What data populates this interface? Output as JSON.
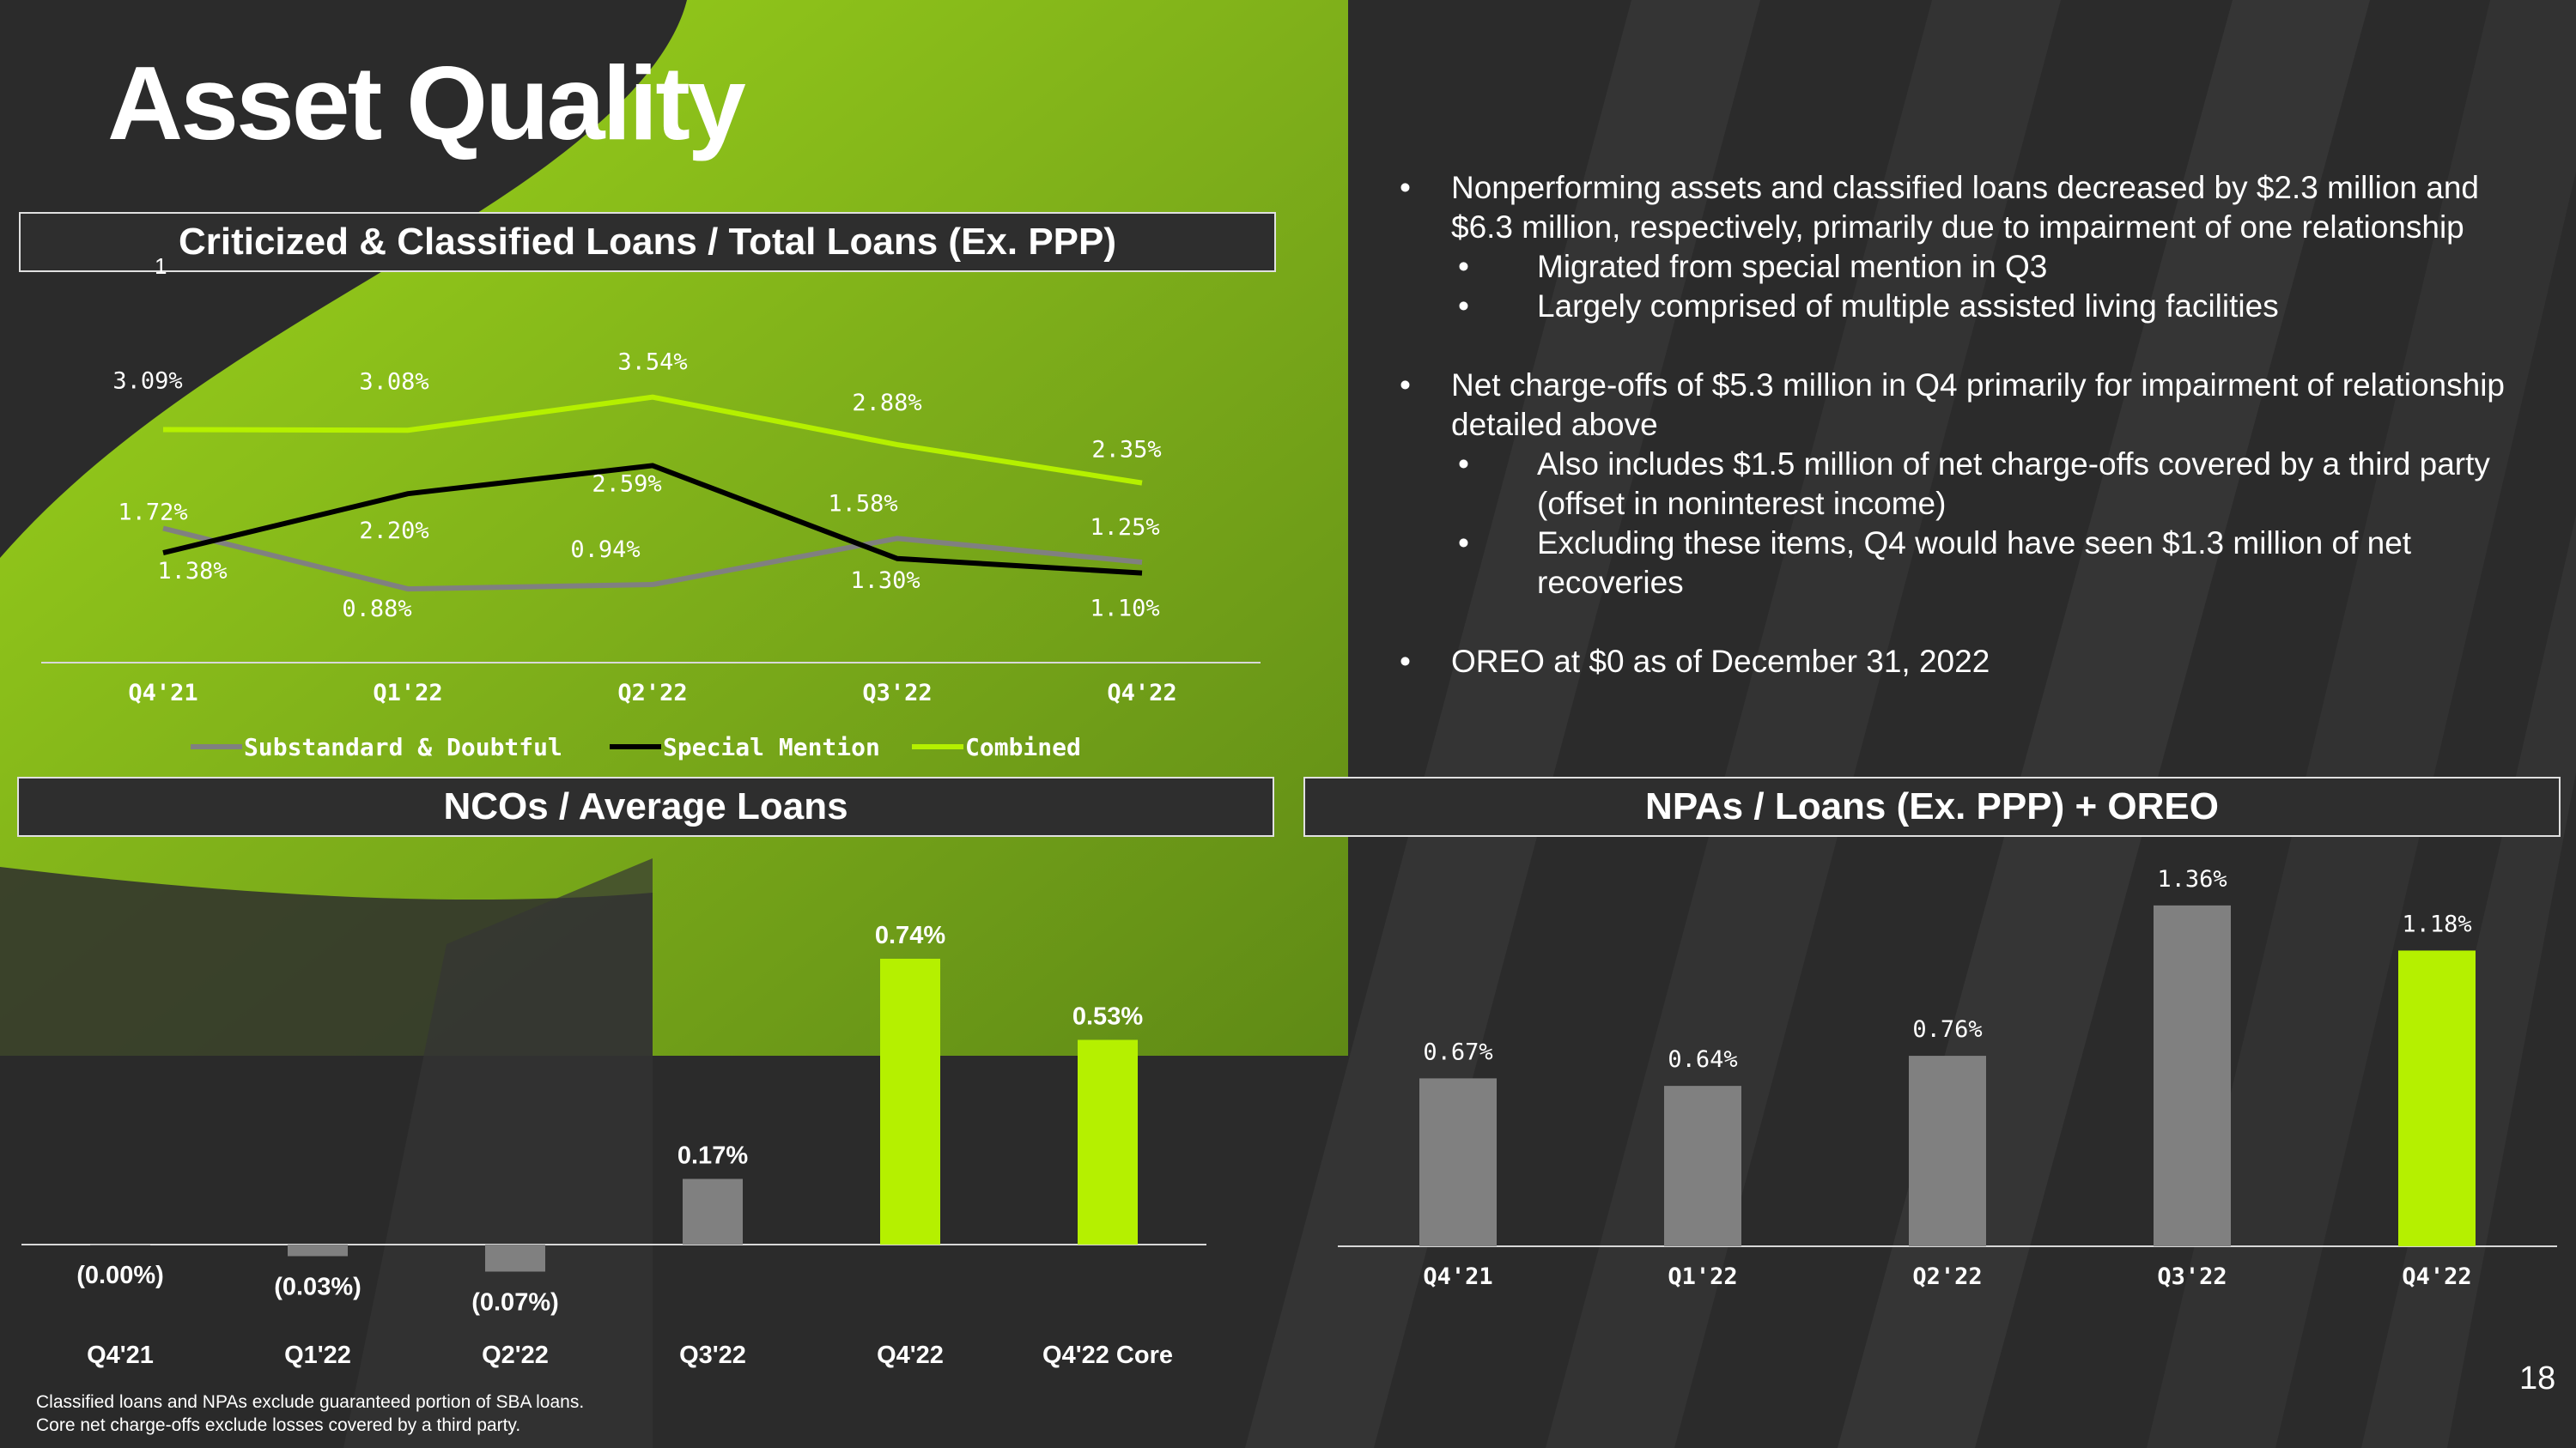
{
  "slide": {
    "title": "Asset Quality",
    "page_number": "18",
    "footnotes": [
      "Classified loans and NPAs exclude guaranteed portion of SBA loans.",
      "Core net charge-offs exclude losses covered by a third party."
    ],
    "colors": {
      "accent_green": "#b5f000",
      "gray_bar": "#808080",
      "dark_bg": "#2a2a2a"
    }
  },
  "panels": {
    "criticized": {
      "header": "Criticized & Classified Loans / Total Loans (Ex. PPP)",
      "superscript": "1"
    },
    "ncos": {
      "header": "NCOs / Average Loans"
    },
    "npas": {
      "header": "NPAs / Loans (Ex. PPP) + OREO"
    }
  },
  "bullets": [
    {
      "text": "Nonperforming assets and classified loans decreased by $2.3 million and $6.3 million, respectively, primarily due to impairment of one relationship",
      "sub": [
        "Migrated from special mention in Q3",
        "Largely comprised of multiple assisted living facilities"
      ]
    },
    {
      "text": "Net charge-offs of $5.3 million in Q4 primarily for impairment of relationship detailed above",
      "sub": [
        "Also includes $1.5 million of net charge-offs covered by a third party (offset in noninterest income)",
        "Excluding these items, Q4 would have seen $1.3 million of net recoveries"
      ]
    },
    {
      "text": "OREO at $0 as of December 31, 2022",
      "sub": []
    }
  ],
  "chart_data": [
    {
      "type": "line",
      "categories": [
        "Q4'21",
        "Q1'22",
        "Q2'22",
        "Q3'22",
        "Q4'22"
      ],
      "ylim": [
        0,
        4
      ],
      "legend_position": "bottom",
      "series": [
        {
          "name": "Substandard & Doubtful",
          "color": "#808080",
          "values": [
            1.72,
            0.88,
            0.94,
            1.58,
            1.25
          ],
          "labels": [
            "1.72%",
            "0.88%",
            "0.94%",
            "1.58%",
            "1.25%"
          ]
        },
        {
          "name": "Special Mention",
          "color": "#000000",
          "values": [
            1.38,
            2.2,
            2.59,
            1.3,
            1.1
          ],
          "labels": [
            "1.38%",
            "2.20%",
            "2.59%",
            "1.30%",
            "1.10%"
          ]
        },
        {
          "name": "Combined",
          "color": "#b5f000",
          "values": [
            3.09,
            3.08,
            3.54,
            2.88,
            2.35
          ],
          "labels": [
            "3.09%",
            "3.08%",
            "3.54%",
            "2.88%",
            "2.35%"
          ]
        }
      ]
    },
    {
      "type": "bar",
      "categories": [
        "Q4'21",
        "Q1'22",
        "Q2'22",
        "Q3'22",
        "Q4'22",
        "Q4'22 Core"
      ],
      "values": [
        0.0,
        -0.03,
        -0.07,
        0.17,
        0.74,
        0.53
      ],
      "labels": [
        "(0.00%)",
        "(0.03%)",
        "(0.07%)",
        "0.17%",
        "0.74%",
        "0.53%"
      ],
      "colors": [
        "#808080",
        "#808080",
        "#808080",
        "#808080",
        "#b5f000",
        "#b5f000"
      ],
      "ylim": [
        -0.1,
        0.8
      ]
    },
    {
      "type": "bar",
      "categories": [
        "Q4'21",
        "Q1'22",
        "Q2'22",
        "Q3'22",
        "Q4'22"
      ],
      "values": [
        0.67,
        0.64,
        0.76,
        1.36,
        1.18
      ],
      "labels": [
        "0.67%",
        "0.64%",
        "0.76%",
        "1.36%",
        "1.18%"
      ],
      "colors": [
        "#808080",
        "#808080",
        "#808080",
        "#808080",
        "#b5f000"
      ],
      "ylim": [
        0,
        1.4
      ]
    }
  ]
}
